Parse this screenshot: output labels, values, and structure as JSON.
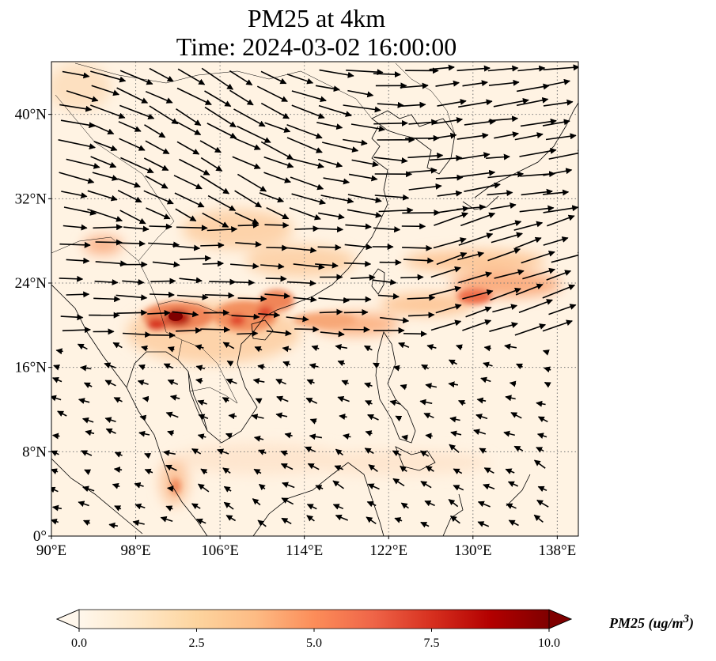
{
  "title": {
    "line1": "PM25 at 4km",
    "line2": "Time: 2024-03-02 16:00:00"
  },
  "map": {
    "extent": {
      "lon_min": 90,
      "lon_max": 140,
      "lat_min": 0,
      "lat_max": 45
    },
    "x_ticks": [
      {
        "value": 90,
        "label": "90°E"
      },
      {
        "value": 98,
        "label": "98°E"
      },
      {
        "value": 106,
        "label": "106°E"
      },
      {
        "value": 114,
        "label": "114°E"
      },
      {
        "value": 122,
        "label": "122°E"
      },
      {
        "value": 130,
        "label": "130°E"
      },
      {
        "value": 138,
        "label": "138°E"
      }
    ],
    "y_ticks": [
      {
        "value": 0,
        "label": "0°"
      },
      {
        "value": 8,
        "label": "8°N"
      },
      {
        "value": 16,
        "label": "16°N"
      },
      {
        "value": 24,
        "label": "24°N"
      },
      {
        "value": 32,
        "label": "32°N"
      },
      {
        "value": 40,
        "label": "40°N"
      }
    ],
    "gridlines": true,
    "wind_arrows": true
  },
  "colorbar": {
    "label": "PM25 (ug/m",
    "label_sup": "3",
    "label_end": ")",
    "ticks": [
      {
        "value": 0,
        "label": "0.0"
      },
      {
        "value": 2.5,
        "label": "2.5"
      },
      {
        "value": 5,
        "label": "5.0"
      },
      {
        "value": 7.5,
        "label": "7.5"
      },
      {
        "value": 10,
        "label": "10.0"
      }
    ],
    "min": 0,
    "max": 10,
    "colormap": "OrRd",
    "colors": [
      "#fff7ec",
      "#fee8c8",
      "#fdd49e",
      "#fdbb84",
      "#fc8d59",
      "#ef6548",
      "#d7301f",
      "#b30000",
      "#7f0000"
    ],
    "extend": "both"
  }
}
